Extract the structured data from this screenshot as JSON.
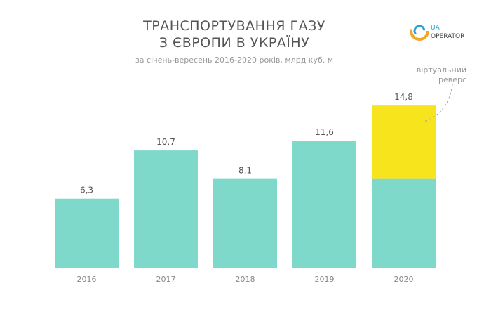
{
  "chart_data": {
    "type": "bar",
    "title": [
      "ТРАНСПОРТУВАННЯ ГАЗУ",
      "З ЄВРОПИ В УКРАЇНУ"
    ],
    "subtitle": "за січень-вересень 2016-2020 років, млрд куб. м",
    "categories": [
      "2016",
      "2017",
      "2018",
      "2019",
      "2020"
    ],
    "values": [
      6.3,
      10.7,
      8.1,
      11.6,
      14.8
    ],
    "data_labels": [
      "6,3",
      "10,7",
      "8,1",
      "11,6",
      "14,8"
    ],
    "stacked_2020": {
      "base": 8.1,
      "virtual_reverse": 6.7
    },
    "annotation": [
      "віртуальний",
      "реверс"
    ],
    "ylim": [
      0,
      15.5
    ],
    "grid": false,
    "legend": "none",
    "colors": {
      "bar": "#7fd9cb",
      "virtual_reverse": "#f7e41c",
      "text": "#555555",
      "axis_label": "#888888"
    }
  },
  "logo": {
    "text_ua": "UA",
    "text": "OPERATOR",
    "colors": [
      "#f5a623",
      "#2a9fd6"
    ]
  }
}
